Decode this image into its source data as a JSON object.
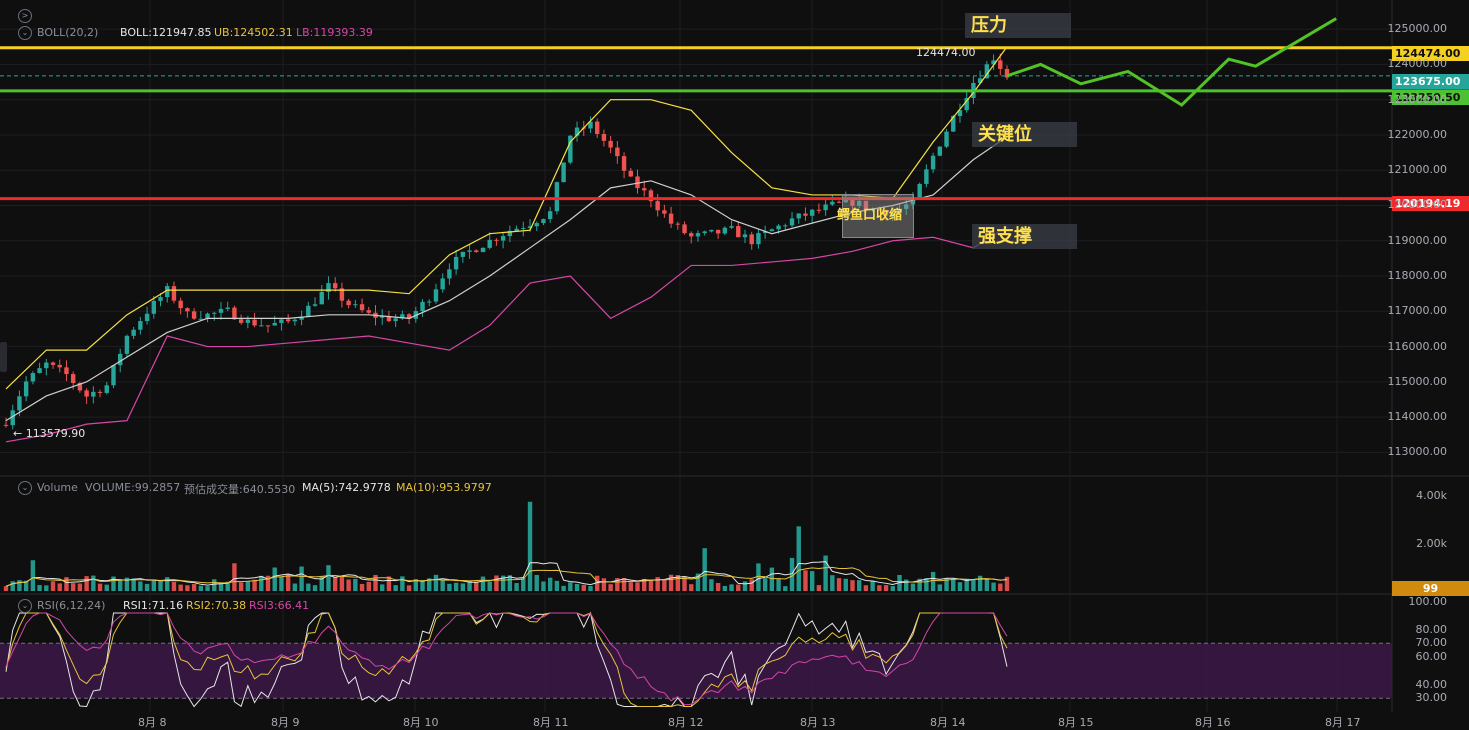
{
  "colors": {
    "up": "#26a69a",
    "down": "#ef5350",
    "boll_mid": "#cfcfcf",
    "boll_ub": "#f5e142",
    "boll_lb": "#d646a7",
    "resistance": "#f5d020",
    "key": "#4cc232",
    "support": "#f02a2a",
    "proj": "#53c226",
    "rsi_band": "#3b1747"
  },
  "indicators": {
    "boll": {
      "name": "BOLL(20,2)",
      "boll": "BOLL:121947.85",
      "ub": "UB:124502.31",
      "lb": "LB:119393.39"
    },
    "volume": {
      "name": "Volume",
      "volume": "VOLUME:99.2857",
      "est": "预估成交量:640.5530",
      "ma5": "MA(5):742.9778",
      "ma10": "MA(10):953.9797"
    },
    "rsi": {
      "name": "RSI(6,12,24)",
      "rsi1": "RSI1:71.16",
      "rsi2": "RSI2:70.38",
      "rsi3": "RSI3:66.41"
    }
  },
  "annotations": {
    "resistance": "压力",
    "key_level": "关键位",
    "support": "强支撑",
    "squeeze": "鳄鱼口收缩",
    "high_label": "124474.00",
    "low_label": "← 113579.90"
  },
  "price_tags": {
    "resistance": "124474.00",
    "current": "123675.00",
    "key": "123250.50",
    "support": "120194.19",
    "volume": "99"
  },
  "axes": {
    "price_ticks": [
      "125000.00",
      "124000.00",
      "123000.00",
      "122000.00",
      "121000.00",
      "120000.00",
      "119000.00",
      "118000.00",
      "117000.00",
      "116000.00",
      "115000.00",
      "114000.00",
      "113000.00"
    ],
    "volume_ticks": [
      "4.00k",
      "2.00k"
    ],
    "rsi_ticks": [
      "100.00",
      "80.00",
      "70.00",
      "60.00",
      "40.00",
      "30.00"
    ],
    "date_ticks": [
      "8月 8",
      "8月 9",
      "8月 10",
      "8月 11",
      "8月 12",
      "8月 13",
      "8月 14",
      "8月 15",
      "8月 16",
      "8月 17"
    ]
  },
  "chart_data": {
    "type": "candlestick",
    "symbol_pair_levels": {
      "resistance": 124474.0,
      "key_level": 123250.5,
      "support": 120194.19,
      "current": 123675.0
    },
    "price_range": [
      112500,
      125600
    ],
    "x": [
      "8月 8",
      "8月 9",
      "8月 10",
      "8月 11",
      "8月 12",
      "8月 13",
      "8月 14"
    ],
    "close_path": [
      [
        0,
        113900
      ],
      [
        3,
        115000
      ],
      [
        6,
        115500
      ],
      [
        9,
        115200
      ],
      [
        12,
        114600
      ],
      [
        15,
        114900
      ],
      [
        18,
        116300
      ],
      [
        21,
        117000
      ],
      [
        24,
        117600
      ],
      [
        27,
        116900
      ],
      [
        30,
        116900
      ],
      [
        33,
        117000
      ],
      [
        36,
        116700
      ],
      [
        39,
        116600
      ],
      [
        42,
        116700
      ],
      [
        45,
        117100
      ],
      [
        48,
        117700
      ],
      [
        51,
        117200
      ],
      [
        54,
        116900
      ],
      [
        57,
        116800
      ],
      [
        60,
        116800
      ],
      [
        63,
        117400
      ],
      [
        66,
        118300
      ],
      [
        69,
        118700
      ],
      [
        72,
        119000
      ],
      [
        75,
        119300
      ],
      [
        78,
        119500
      ],
      [
        81,
        119800
      ],
      [
        84,
        122000
      ],
      [
        87,
        122300
      ],
      [
        90,
        121600
      ],
      [
        93,
        120700
      ],
      [
        96,
        120200
      ],
      [
        99,
        119500
      ],
      [
        102,
        119100
      ],
      [
        105,
        119200
      ],
      [
        108,
        119300
      ],
      [
        111,
        119000
      ],
      [
        114,
        119300
      ],
      [
        117,
        119600
      ],
      [
        120,
        119800
      ],
      [
        123,
        120000
      ],
      [
        126,
        120100
      ],
      [
        129,
        119900
      ],
      [
        132,
        119800
      ],
      [
        135,
        120100
      ],
      [
        138,
        121400
      ],
      [
        141,
        122500
      ],
      [
        144,
        123500
      ],
      [
        147,
        124200
      ],
      [
        149,
        123675
      ]
    ],
    "boll_ub_path": [
      [
        0,
        114800
      ],
      [
        6,
        115900
      ],
      [
        12,
        115900
      ],
      [
        18,
        116900
      ],
      [
        24,
        117600
      ],
      [
        30,
        117600
      ],
      [
        36,
        117600
      ],
      [
        42,
        117600
      ],
      [
        48,
        117600
      ],
      [
        54,
        117600
      ],
      [
        60,
        117500
      ],
      [
        66,
        118600
      ],
      [
        72,
        119200
      ],
      [
        78,
        119300
      ],
      [
        84,
        121800
      ],
      [
        90,
        123000
      ],
      [
        96,
        123000
      ],
      [
        102,
        122700
      ],
      [
        108,
        121500
      ],
      [
        114,
        120500
      ],
      [
        120,
        120300
      ],
      [
        126,
        120300
      ],
      [
        132,
        120200
      ],
      [
        138,
        121800
      ],
      [
        144,
        123200
      ],
      [
        149,
        124502
      ]
    ],
    "boll_mid_path": [
      [
        0,
        113900
      ],
      [
        6,
        114600
      ],
      [
        12,
        115000
      ],
      [
        18,
        115700
      ],
      [
        24,
        116400
      ],
      [
        30,
        116800
      ],
      [
        36,
        116800
      ],
      [
        42,
        116800
      ],
      [
        48,
        116900
      ],
      [
        54,
        116900
      ],
      [
        60,
        116800
      ],
      [
        66,
        117300
      ],
      [
        72,
        118000
      ],
      [
        78,
        118800
      ],
      [
        84,
        119600
      ],
      [
        90,
        120500
      ],
      [
        96,
        120700
      ],
      [
        102,
        120300
      ],
      [
        108,
        119600
      ],
      [
        114,
        119200
      ],
      [
        120,
        119500
      ],
      [
        126,
        119800
      ],
      [
        132,
        120000
      ],
      [
        138,
        120300
      ],
      [
        144,
        121300
      ],
      [
        149,
        121948
      ]
    ],
    "boll_lb_path": [
      [
        0,
        113300
      ],
      [
        6,
        113500
      ],
      [
        12,
        113800
      ],
      [
        18,
        113900
      ],
      [
        24,
        116300
      ],
      [
        30,
        116000
      ],
      [
        36,
        116000
      ],
      [
        42,
        116100
      ],
      [
        48,
        116200
      ],
      [
        54,
        116300
      ],
      [
        60,
        116100
      ],
      [
        66,
        115900
      ],
      [
        72,
        116600
      ],
      [
        78,
        117800
      ],
      [
        84,
        118000
      ],
      [
        90,
        116800
      ],
      [
        96,
        117400
      ],
      [
        102,
        118300
      ],
      [
        108,
        118300
      ],
      [
        114,
        118400
      ],
      [
        120,
        118500
      ],
      [
        126,
        118700
      ],
      [
        132,
        119000
      ],
      [
        138,
        119100
      ],
      [
        144,
        118800
      ],
      [
        149,
        119393
      ]
    ],
    "projection": [
      [
        149,
        123675
      ],
      [
        154,
        124000
      ],
      [
        160,
        123450
      ],
      [
        167,
        123800
      ],
      [
        175,
        122850
      ],
      [
        182,
        124150
      ],
      [
        186,
        123950
      ],
      [
        198,
        125300
      ]
    ],
    "rsi_levels": [
      70,
      30
    ],
    "volume_max": 4000,
    "series": [
      {
        "name": "BOLL",
        "last": 121947.85
      },
      {
        "name": "UB",
        "last": 124502.31
      },
      {
        "name": "LB",
        "last": 119393.39
      },
      {
        "name": "RSI1",
        "last": 71.16
      },
      {
        "name": "RSI2",
        "last": 70.38
      },
      {
        "name": "RSI3",
        "last": 66.41
      }
    ]
  }
}
